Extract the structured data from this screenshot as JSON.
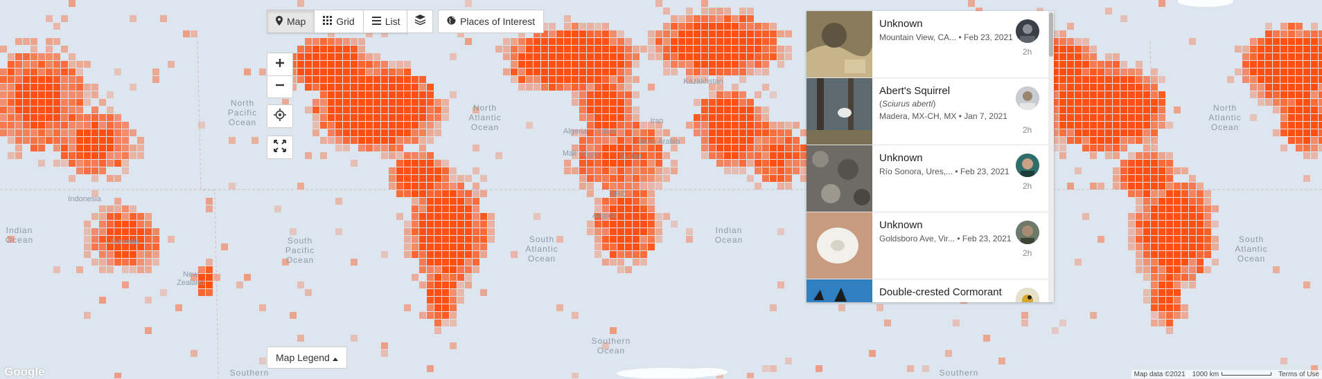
{
  "toolbar": {
    "map_label": "Map",
    "grid_label": "Grid",
    "list_label": "List",
    "poi_label": "Places of Interest"
  },
  "map": {
    "legend_label": "Map Legend",
    "logo": "Google",
    "attribution": "Map data ©2021",
    "scale_label": "1000 km",
    "terms": "Terms of Use",
    "heat_color": "#ff4f12",
    "ocean_color": "#dde6ef",
    "labels": {
      "north_pacific": [
        "North",
        "Pacific",
        "Ocean"
      ],
      "indian_1": [
        "Indian",
        "Ocean"
      ],
      "indian_2": [
        "Indian",
        "Ocean"
      ],
      "south_pacific": [
        "South",
        "Pacific",
        "Ocean"
      ],
      "north_atlantic": [
        "North",
        "Atlantic",
        "Ocean"
      ],
      "north_atlantic_2": [
        "North",
        "Atlantic",
        "Ocean"
      ],
      "south_atlantic": [
        "South",
        "Atlantic",
        "Ocean"
      ],
      "south_atlantic_2": [
        "South",
        "Atlantic",
        "Ocean"
      ],
      "southern_ocean": [
        "Southern",
        "Ocean"
      ],
      "southern_1": "Southern",
      "southern_2": "Southern",
      "kazakhstan": "Kazakhstan",
      "iran": "Iran",
      "libya": "Libya",
      "algeria": "Algeria",
      "saudi_arabia": "Saudi Arabia",
      "mali": "Mali",
      "niger": "Niger",
      "sudan": "Sudan",
      "drc": "DRC",
      "angola": "Angola",
      "indonesia": "Indonesia",
      "australia": "Australia",
      "new_zealand": [
        "New",
        "Zealand"
      ]
    }
  },
  "observations": [
    {
      "name": "Unknown",
      "sci": "",
      "place": "Mountain View, CA...",
      "date": "Feb 23, 2021",
      "time": "2h"
    },
    {
      "name": "Abert's Squirrel",
      "sci": "Sciurus aberti",
      "place": "Madera, MX-CH, MX",
      "date": "Jan 7, 2021",
      "time": "2h"
    },
    {
      "name": "Unknown",
      "sci": "",
      "place": "Río Sonora, Ures,...",
      "date": "Feb 23, 2021",
      "time": "2h"
    },
    {
      "name": "Unknown",
      "sci": "",
      "place": "Goldsboro Ave, Vir...",
      "date": "Feb 23, 2021",
      "time": "2h"
    },
    {
      "name": "Double-crested Cormorant",
      "sci": "",
      "place": "",
      "date": "",
      "time": ""
    }
  ]
}
